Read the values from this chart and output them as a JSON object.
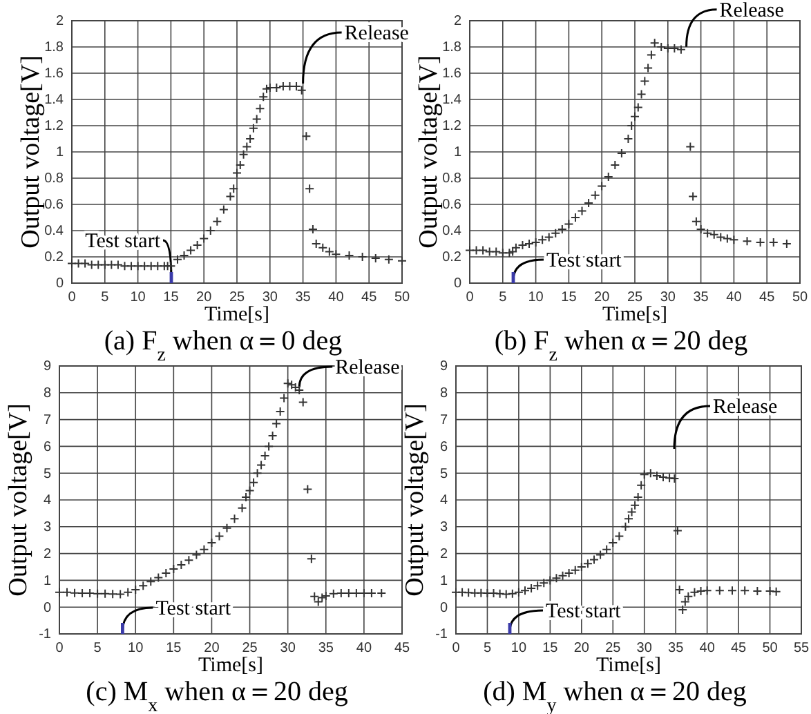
{
  "chart_data": [
    {
      "type": "scatter",
      "title": "(a) F$_{z}$ when α＝0 deg",
      "xlabel": "Time[s]",
      "ylabel": "Output voltage[V]",
      "xlim": [
        0,
        50
      ],
      "xticks": [
        0,
        5,
        10,
        15,
        20,
        25,
        30,
        35,
        40,
        45,
        50
      ],
      "ylim": [
        0,
        2
      ],
      "yticks": [
        0,
        0.2,
        0.4,
        0.6,
        0.8,
        1,
        1.2,
        1.4,
        1.6,
        1.8,
        2
      ],
      "grid": true,
      "marker": "cross",
      "series": [
        {
          "color": "#333333",
          "x": [
            0,
            1,
            2,
            3,
            4,
            5,
            6,
            7,
            8,
            9,
            10,
            11,
            12,
            13,
            14,
            14.5,
            15,
            16,
            17,
            18,
            19,
            20,
            21,
            22,
            23,
            24,
            24.5,
            25,
            25.5,
            26,
            26.5,
            27,
            27.5,
            28,
            28.5,
            29,
            29.5,
            30,
            31,
            32,
            33,
            34,
            34.8,
            35.5,
            36,
            36.5,
            37,
            38,
            39,
            40,
            42,
            44,
            46,
            48,
            50
          ],
          "values": [
            0.15,
            0.15,
            0.15,
            0.14,
            0.14,
            0.14,
            0.14,
            0.14,
            0.13,
            0.13,
            0.13,
            0.13,
            0.13,
            0.13,
            0.13,
            0.13,
            0.13,
            0.18,
            0.21,
            0.25,
            0.29,
            0.34,
            0.4,
            0.47,
            0.56,
            0.66,
            0.72,
            0.84,
            0.9,
            0.98,
            1.04,
            1.1,
            1.18,
            1.25,
            1.33,
            1.42,
            1.48,
            1.49,
            1.49,
            1.5,
            1.5,
            1.5,
            1.47,
            1.12,
            0.72,
            0.41,
            0.3,
            0.27,
            0.24,
            0.22,
            0.21,
            0.2,
            0.19,
            0.18,
            0.17
          ]
        }
      ],
      "annotations": [
        {
          "text": "Release",
          "x": 35,
          "y": 1.5
        },
        "Test start"
      ]
    },
    {
      "type": "scatter",
      "title": "(b) F$_{z}$ when α＝20 deg",
      "xlabel": "Time[s]",
      "ylabel": "Output voltage[V]",
      "xlim": [
        0,
        50
      ],
      "xticks": [
        0,
        5,
        10,
        15,
        20,
        25,
        30,
        35,
        40,
        45,
        50
      ],
      "ylim": [
        0,
        2
      ],
      "yticks": [
        0,
        0.2,
        0.4,
        0.6,
        0.8,
        1,
        1.2,
        1.4,
        1.6,
        1.8,
        2
      ],
      "grid": true,
      "marker": "cross",
      "series": [
        {
          "color": "#333333",
          "x": [
            0,
            1,
            2,
            3,
            4,
            5,
            6,
            6.5,
            7,
            8,
            9,
            10,
            11,
            12,
            13,
            14,
            15,
            16,
            17,
            18,
            19,
            20,
            21,
            22,
            23,
            24,
            24.5,
            25,
            25.5,
            26,
            26.5,
            27,
            27.5,
            28,
            29,
            30,
            31,
            32,
            33.4,
            33.8,
            34.3,
            35,
            36,
            37,
            38,
            39,
            40,
            42,
            44,
            46,
            48
          ],
          "values": [
            0.25,
            0.25,
            0.25,
            0.24,
            0.24,
            0.23,
            0.23,
            0.24,
            0.27,
            0.29,
            0.3,
            0.31,
            0.33,
            0.35,
            0.38,
            0.41,
            0.45,
            0.5,
            0.55,
            0.61,
            0.67,
            0.74,
            0.81,
            0.9,
            0.99,
            1.1,
            1.2,
            1.27,
            1.34,
            1.44,
            1.54,
            1.64,
            1.74,
            1.83,
            1.8,
            1.79,
            1.79,
            1.78,
            1.04,
            0.66,
            0.47,
            0.41,
            0.38,
            0.37,
            0.35,
            0.34,
            0.33,
            0.32,
            0.31,
            0.31,
            0.3
          ]
        }
      ],
      "annotations": [
        {
          "text": "Release",
          "x": 32.8,
          "y": 1.78
        },
        "Test start"
      ]
    },
    {
      "type": "scatter",
      "title": "(c) M$_{x}$ when α＝20 deg",
      "xlabel": "Time[s]",
      "ylabel": "Output voltage[V]",
      "xlim": [
        0,
        45
      ],
      "xticks": [
        0,
        5,
        10,
        15,
        20,
        25,
        30,
        35,
        40,
        45
      ],
      "ylim": [
        -1,
        9
      ],
      "yticks": [
        -1,
        0,
        1,
        2,
        3,
        4,
        5,
        6,
        7,
        8,
        9
      ],
      "grid": true,
      "marker": "cross",
      "series": [
        {
          "color": "#333333",
          "x": [
            0,
            1,
            2,
            3,
            4,
            5,
            6,
            7,
            8,
            9,
            10,
            11,
            12,
            13,
            14,
            15,
            16,
            17,
            18,
            19,
            20,
            21,
            22,
            23,
            24,
            24.5,
            25,
            25.5,
            26,
            26.5,
            27,
            27.5,
            28,
            28.5,
            29,
            29.5,
            30,
            30.5,
            31,
            31.5,
            32,
            32.6,
            33.1,
            33.5,
            34,
            34.5,
            35,
            36,
            37,
            38,
            39,
            40,
            41,
            42.3
          ],
          "values": [
            0.55,
            0.55,
            0.53,
            0.52,
            0.52,
            0.5,
            0.5,
            0.49,
            0.48,
            0.55,
            0.65,
            0.8,
            0.95,
            1.1,
            1.27,
            1.42,
            1.58,
            1.75,
            1.95,
            2.15,
            2.4,
            2.65,
            2.95,
            3.3,
            3.7,
            4.1,
            4.35,
            4.65,
            5,
            5.3,
            5.65,
            6,
            6.4,
            6.85,
            7.3,
            7.8,
            8.35,
            8.3,
            8.2,
            8.1,
            7.65,
            4.4,
            1.8,
            0.4,
            0.2,
            0.35,
            0.42,
            0.5,
            0.52,
            0.52,
            0.52,
            0.52,
            0.52,
            0.52
          ]
        }
      ],
      "annotations": [
        {
          "text": "Release",
          "x": 31.5,
          "y": 8.1
        },
        "Test start"
      ]
    },
    {
      "type": "scatter",
      "title": "(d) M$_{y}$ when α＝20 deg",
      "xlabel": "Time[s]",
      "ylabel": "Output voltage[V]",
      "xlim": [
        0,
        55
      ],
      "xticks": [
        0,
        5,
        10,
        15,
        20,
        25,
        30,
        35,
        40,
        45,
        50,
        55
      ],
      "ylim": [
        -1,
        9
      ],
      "yticks": [
        -1,
        0,
        1,
        2,
        3,
        4,
        5,
        6,
        7,
        8,
        9
      ],
      "grid": true,
      "marker": "cross",
      "series": [
        {
          "color": "#333333",
          "x": [
            0,
            1,
            2,
            3,
            4,
            5,
            6,
            7,
            8,
            9,
            10,
            11,
            12,
            13,
            14,
            15,
            16,
            17,
            18,
            19,
            20,
            21,
            22,
            23,
            24,
            25,
            26,
            27,
            27.5,
            28,
            28.5,
            29,
            29.5,
            30,
            31,
            32,
            33,
            34,
            34.8,
            35.3,
            35.6,
            36.1,
            36.5,
            37,
            38,
            39,
            40,
            42,
            44,
            46,
            48,
            50,
            51
          ],
          "values": [
            0.55,
            0.55,
            0.54,
            0.53,
            0.53,
            0.52,
            0.52,
            0.5,
            0.48,
            0.5,
            0.55,
            0.62,
            0.7,
            0.8,
            0.9,
            1,
            1.08,
            1.17,
            1.27,
            1.38,
            1.5,
            1.62,
            1.77,
            1.95,
            2.15,
            2.4,
            2.65,
            3,
            3.3,
            3.55,
            3.8,
            4.1,
            4.55,
            4.95,
            5,
            4.9,
            4.85,
            4.82,
            4.8,
            2.85,
            0.65,
            -0.1,
            0.2,
            0.4,
            0.55,
            0.6,
            0.62,
            0.62,
            0.62,
            0.62,
            0.6,
            0.6,
            0.58
          ]
        }
      ],
      "annotations": [
        "Release",
        "Test start"
      ]
    }
  ]
}
